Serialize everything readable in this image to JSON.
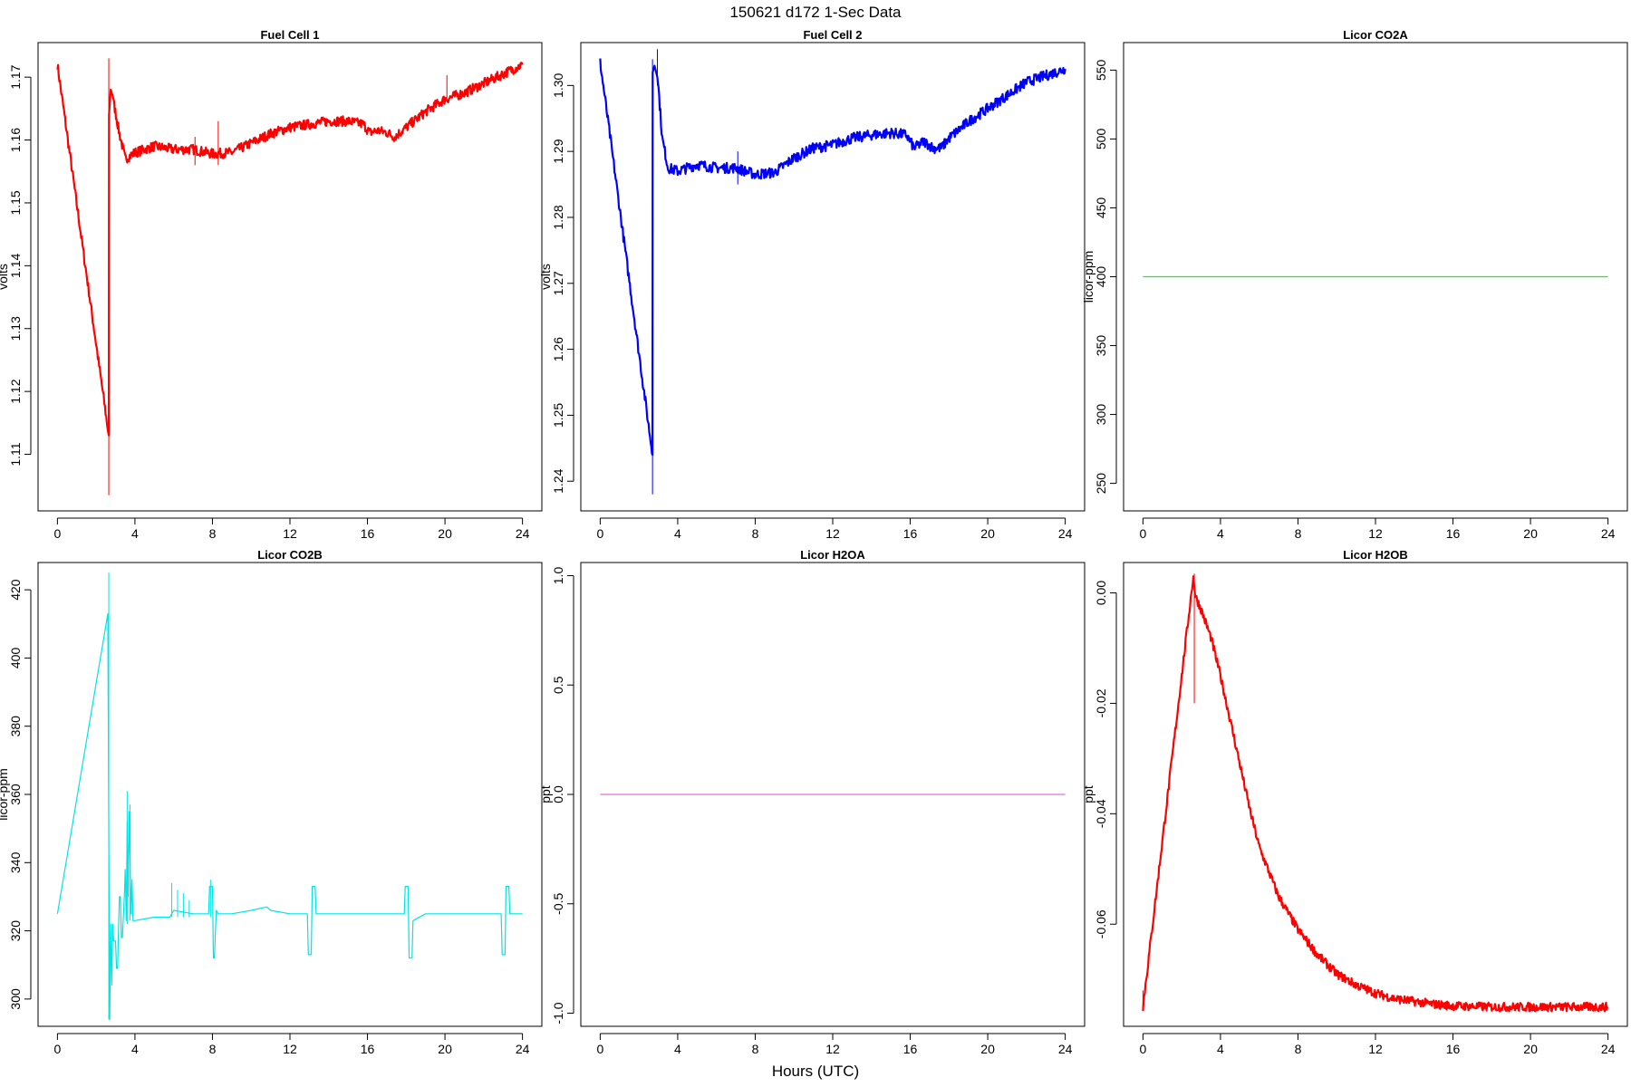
{
  "page": {
    "title": "150621    d172    1-Sec Data",
    "xlabel": "Hours (UTC)"
  },
  "chart_data": [
    {
      "type": "line",
      "title": "Fuel Cell 1",
      "ylabel": "volts",
      "xlabel": "",
      "color": "#ff0000",
      "noise": 0.0008,
      "xlim": [
        -1,
        25
      ],
      "ylim": [
        1.101,
        1.1755
      ],
      "xticks": [
        0,
        4,
        8,
        12,
        16,
        20,
        24
      ],
      "yticks": [
        "1.11",
        "1.12",
        "1.13",
        "1.14",
        "1.15",
        "1.16",
        "1.17"
      ],
      "series": [
        {
          "x": [
            0,
            2.65,
            2.66,
            2.75,
            2.9,
            3.2,
            3.5,
            4,
            5,
            6,
            7,
            8,
            9,
            10,
            11,
            12,
            13,
            14,
            15,
            15.8,
            16.1,
            16.5,
            17,
            17.4,
            18,
            19,
            20,
            21,
            22,
            23,
            24
          ],
          "y": [
            1.172,
            1.113,
            1.164,
            1.168,
            1.166,
            1.161,
            1.157,
            1.158,
            1.159,
            1.1585,
            1.1585,
            1.1578,
            1.158,
            1.1595,
            1.161,
            1.162,
            1.1625,
            1.163,
            1.163,
            1.1625,
            1.1612,
            1.1615,
            1.1612,
            1.1605,
            1.162,
            1.1645,
            1.1665,
            1.1675,
            1.169,
            1.1705,
            1.172
          ]
        }
      ],
      "spikes": [
        {
          "x": 2.65,
          "y0": 1.1035,
          "y1": 1.173
        },
        {
          "x": 7.1,
          "y0": 1.156,
          "y1": 1.1605
        },
        {
          "x": 8.3,
          "y0": 1.156,
          "y1": 1.163
        },
        {
          "x": 20.1,
          "y0": 1.166,
          "y1": 1.1703
        }
      ]
    },
    {
      "type": "line",
      "title": "Fuel Cell 2",
      "ylabel": "volts",
      "xlabel": "",
      "color": "#0000ff",
      "noise": 0.0008,
      "xlim": [
        -1,
        25
      ],
      "ylim": [
        1.2355,
        1.3065
      ],
      "xticks": [
        0,
        4,
        8,
        12,
        16,
        20,
        24
      ],
      "yticks": [
        "1.24",
        "1.25",
        "1.26",
        "1.27",
        "1.28",
        "1.29",
        "1.30"
      ],
      "series": [
        {
          "x": [
            0,
            2.7,
            2.71,
            2.8,
            2.95,
            3.2,
            3.5,
            4,
            5,
            6,
            7,
            8,
            9,
            10,
            11,
            12,
            13,
            14,
            15,
            15.8,
            16.2,
            16.7,
            17.2,
            17.6,
            18,
            19,
            20,
            21,
            22,
            23,
            24
          ],
          "y": [
            1.3035,
            1.244,
            1.302,
            1.303,
            1.302,
            1.292,
            1.2875,
            1.287,
            1.288,
            1.2875,
            1.2875,
            1.2865,
            1.2868,
            1.289,
            1.2905,
            1.291,
            1.292,
            1.2925,
            1.2928,
            1.2925,
            1.2905,
            1.2915,
            1.2905,
            1.2905,
            1.292,
            1.2945,
            1.2965,
            1.2985,
            1.3005,
            1.3015,
            1.3025
          ]
        }
      ],
      "spikes": [
        {
          "x": 2.7,
          "y0": 1.238,
          "y1": 1.304
        },
        {
          "x": 2.95,
          "y0": 1.3,
          "y1": 1.3055
        },
        {
          "x": 7.1,
          "y0": 1.285,
          "y1": 1.29
        }
      ]
    },
    {
      "type": "line",
      "title": "Licor CO2A",
      "ylabel": "licor-ppm",
      "xlabel": "",
      "color": "#00ff00",
      "noise": 0,
      "xlim": [
        -1,
        25
      ],
      "ylim": [
        230,
        570
      ],
      "xticks": [
        0,
        4,
        8,
        12,
        16,
        20,
        24
      ],
      "yticks": [
        "250",
        "300",
        "350",
        "400",
        "450",
        "500",
        "550"
      ],
      "series": [
        {
          "x": [
            0,
            24
          ],
          "y": [
            400,
            400
          ]
        }
      ],
      "spikes": []
    },
    {
      "type": "line",
      "title": "Licor CO2B",
      "ylabel": "licor-ppm",
      "xlabel": "",
      "color": "#00e5e5",
      "noise": 0,
      "xlim": [
        -1,
        25
      ],
      "ylim": [
        292,
        428
      ],
      "xticks": [
        0,
        4,
        8,
        12,
        16,
        20,
        24
      ],
      "yticks": [
        "300",
        "320",
        "340",
        "360",
        "380",
        "400",
        "420"
      ],
      "series": [
        {
          "x": [
            0,
            2.6,
            2.65,
            2.7,
            2.75,
            2.8,
            2.85,
            2.9,
            3.0,
            3.05,
            3.1,
            3.2,
            3.25,
            3.3,
            3.35,
            3.45,
            3.5,
            3.55,
            3.6,
            3.65,
            3.7,
            3.8,
            3.85,
            3.9,
            4.0,
            5,
            5.8,
            6,
            7,
            7.8,
            7.85,
            8.0,
            8.05,
            8.1,
            8.2,
            8.3,
            9,
            10,
            10.8,
            11,
            12,
            12.9,
            12.95,
            13.1,
            13.15,
            13.3,
            13.35,
            14,
            15,
            16,
            17,
            17.9,
            17.95,
            18.1,
            18.15,
            18.3,
            18.35,
            19,
            20,
            21,
            22,
            22.9,
            22.95,
            23.1,
            23.15,
            23.3,
            23.35,
            24
          ],
          "y": [
            325,
            413,
            345,
            294,
            322,
            304,
            322,
            317,
            317,
            309,
            309,
            330,
            330,
            318,
            318,
            330,
            338,
            323,
            352,
            330,
            355,
            325,
            335,
            323,
            323,
            324,
            324,
            326,
            325,
            325,
            333,
            333,
            312,
            312,
            326,
            325,
            325,
            326,
            327,
            326,
            325,
            325,
            313,
            313,
            333,
            333,
            325,
            325,
            325,
            325,
            325,
            325,
            333,
            333,
            312,
            312,
            323,
            325,
            325,
            325,
            325,
            325,
            313,
            313,
            333,
            333,
            325,
            325
          ]
        }
      ],
      "spikes": [
        {
          "x": 2.65,
          "y0": 294,
          "y1": 425
        },
        {
          "x": 3.6,
          "y0": 322,
          "y1": 361
        },
        {
          "x": 3.75,
          "y0": 323,
          "y1": 357
        },
        {
          "x": 5.9,
          "y0": 324,
          "y1": 334
        },
        {
          "x": 6.2,
          "y0": 324,
          "y1": 332
        },
        {
          "x": 6.5,
          "y0": 324,
          "y1": 331
        },
        {
          "x": 6.8,
          "y0": 324,
          "y1": 329
        },
        {
          "x": 7.9,
          "y0": 324,
          "y1": 335
        }
      ]
    },
    {
      "type": "line",
      "title": "Licor H2OA",
      "ylabel": "ppt",
      "xlabel": "",
      "color": "#e070e0",
      "noise": 0,
      "xlim": [
        -1,
        25
      ],
      "ylim": [
        -1.06,
        1.06
      ],
      "xticks": [
        0,
        4,
        8,
        12,
        16,
        20,
        24
      ],
      "yticks": [
        "-1.0",
        "-0.5",
        "0.0",
        "0.5",
        "1.0"
      ],
      "series": [
        {
          "x": [
            0,
            24
          ],
          "y": [
            0,
            0
          ]
        }
      ],
      "spikes": []
    },
    {
      "type": "line",
      "title": "Licor H2OB",
      "ylabel": "ppt",
      "xlabel": "",
      "color": "#ff0000",
      "noise": 0.0008,
      "xlim": [
        -1,
        25
      ],
      "ylim": [
        -0.0785,
        0.0055
      ],
      "xticks": [
        0,
        4,
        8,
        12,
        16,
        20,
        24
      ],
      "yticks": [
        "-0.06",
        "-0.04",
        "-0.02",
        "0.00"
      ],
      "series": [
        {
          "x": [
            0,
            2.6,
            2.7,
            3.0,
            3.5,
            4,
            4.5,
            5,
            5.5,
            6,
            7,
            8,
            9,
            10,
            11,
            12,
            13,
            14,
            15,
            16,
            18,
            20,
            22,
            24
          ],
          "y": [
            -0.075,
            0.003,
            -0.0005,
            -0.003,
            -0.008,
            -0.015,
            -0.023,
            -0.031,
            -0.039,
            -0.046,
            -0.055,
            -0.061,
            -0.0655,
            -0.069,
            -0.071,
            -0.0725,
            -0.0735,
            -0.074,
            -0.0745,
            -0.0748,
            -0.075,
            -0.075,
            -0.075,
            -0.075
          ]
        }
      ],
      "spikes": [
        {
          "x": 2.65,
          "y0": -0.02,
          "y1": 0.0035
        },
        {
          "x": 0.0,
          "y0": -0.0755,
          "y1": -0.072
        }
      ]
    }
  ]
}
